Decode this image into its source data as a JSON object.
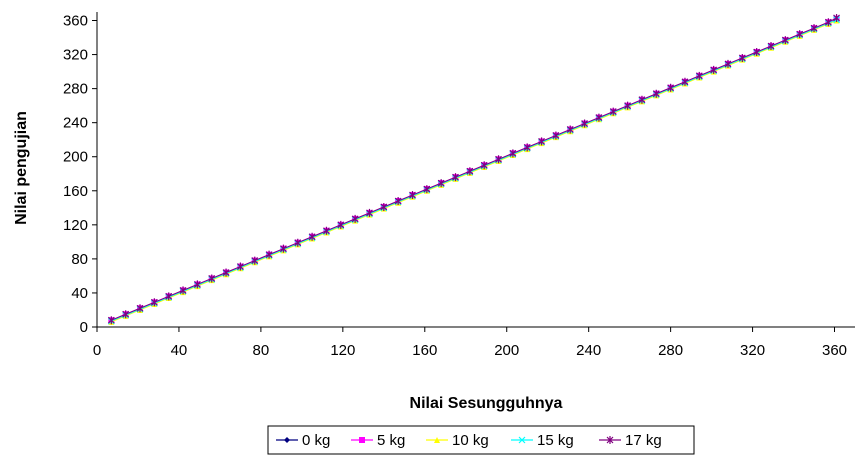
{
  "chart_data": {
    "type": "line",
    "title": "",
    "xlabel": "Nilai Sesungguhnya",
    "ylabel": "Nilai pengujian",
    "xlim": [
      0,
      370
    ],
    "ylim": [
      0,
      370
    ],
    "xticks": [
      0,
      40,
      80,
      120,
      160,
      200,
      240,
      280,
      320,
      360
    ],
    "yticks": [
      0,
      40,
      80,
      120,
      160,
      200,
      240,
      280,
      320,
      360
    ],
    "grid": false,
    "legend_position": "bottom",
    "x": [
      7,
      14,
      21,
      28,
      35,
      42,
      49,
      56,
      63,
      70,
      77,
      84,
      91,
      98,
      105,
      112,
      119,
      126,
      133,
      140,
      147,
      154,
      161,
      168,
      175,
      182,
      189,
      196,
      203,
      210,
      217,
      224,
      231,
      238,
      245,
      252,
      259,
      266,
      273,
      280,
      287,
      294,
      301,
      308,
      315,
      322,
      329,
      336,
      343,
      350,
      357,
      361
    ],
    "series": [
      {
        "name": "0 kg",
        "color": "#000080",
        "marker": "diamond",
        "values": [
          7,
          14,
          21,
          28,
          35,
          42,
          49,
          56,
          63,
          70,
          77,
          84,
          91,
          98,
          105,
          112,
          119,
          126,
          133,
          140,
          147,
          154,
          161,
          168,
          175,
          182,
          189,
          196,
          203,
          210,
          217,
          224,
          231,
          238,
          245,
          252,
          259,
          266,
          273,
          280,
          287,
          294,
          301,
          308,
          315,
          322,
          329,
          336,
          343,
          350,
          357,
          361
        ]
      },
      {
        "name": "5 kg",
        "color": "#ff00ff",
        "marker": "square",
        "values": [
          8,
          15,
          22,
          29,
          36,
          43,
          50,
          57,
          64,
          71,
          78,
          85,
          92,
          99,
          106,
          113,
          120,
          127,
          134,
          141,
          148,
          155,
          162,
          169,
          176,
          183,
          190,
          197,
          204,
          211,
          218,
          225,
          232,
          239,
          246,
          253,
          260,
          267,
          274,
          281,
          288,
          295,
          302,
          309,
          316,
          323,
          330,
          337,
          344,
          351,
          358,
          362
        ]
      },
      {
        "name": "10 kg",
        "color": "#ffff00",
        "marker": "triangle",
        "values": [
          6,
          13,
          20,
          27,
          34,
          41,
          48,
          55,
          62,
          69,
          76,
          83,
          90,
          97,
          104,
          111,
          118,
          125,
          132,
          139,
          146,
          153,
          160,
          167,
          174,
          181,
          188,
          195,
          202,
          209,
          216,
          223,
          230,
          237,
          244,
          251,
          258,
          265,
          272,
          279,
          286,
          293,
          300,
          307,
          314,
          321,
          328,
          335,
          342,
          349,
          356,
          360
        ]
      },
      {
        "name": "15 kg",
        "color": "#00ffff",
        "marker": "x",
        "values": [
          7,
          14,
          21,
          28,
          35,
          42,
          49,
          56,
          63,
          70,
          77,
          84,
          91,
          98,
          105,
          112,
          119,
          126,
          133,
          140,
          147,
          154,
          161,
          168,
          175,
          182,
          189,
          196,
          203,
          210,
          217,
          224,
          231,
          238,
          245,
          252,
          259,
          266,
          273,
          280,
          287,
          294,
          301,
          308,
          315,
          322,
          329,
          336,
          343,
          350,
          357,
          361
        ]
      },
      {
        "name": "17 kg",
        "color": "#800080",
        "marker": "star",
        "values": [
          8,
          15,
          22,
          29,
          36,
          43,
          50,
          57,
          64,
          71,
          78,
          85,
          92,
          99,
          106,
          113,
          120,
          127,
          134,
          141,
          148,
          155,
          162,
          169,
          176,
          183,
          190,
          197,
          204,
          211,
          218,
          225,
          232,
          239,
          246,
          253,
          260,
          267,
          274,
          281,
          288,
          295,
          302,
          309,
          316,
          323,
          330,
          337,
          344,
          351,
          358,
          363
        ]
      }
    ]
  }
}
